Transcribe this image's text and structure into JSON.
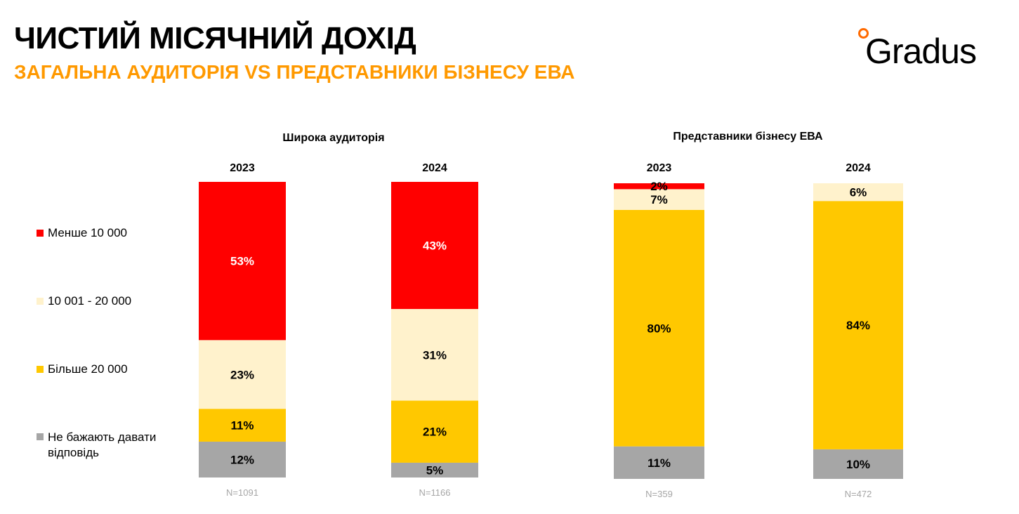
{
  "header": {
    "title": "ЧИСТИЙ МІСЯЧНИЙ ДОХІД",
    "subtitle": "ЗАГАЛЬНА АУДИТОРІЯ VS ПРЕДСТАВНИКИ БІЗНЕСУ ЕВА",
    "logo": "Gradus"
  },
  "chart_data": {
    "type": "bar",
    "stacked": true,
    "groups": [
      "Широка аудиторія",
      "Представники бізнесу ЕВА"
    ],
    "categories": [
      "2023",
      "2024",
      "2023",
      "2024"
    ],
    "group_of_category": [
      0,
      0,
      1,
      1
    ],
    "sample_sizes": [
      "N=1091",
      "N=1166",
      "N=359",
      "N=472"
    ],
    "legend": [
      {
        "name": "Менше 10 000",
        "color": "#FF0000"
      },
      {
        "name": "10 001 - 20 000",
        "color": "#FFF2CC"
      },
      {
        "name": "Більше 20 000",
        "color": "#FFC800"
      },
      {
        "name": "Не бажають давати відповідь",
        "color": "#A6A6A6"
      }
    ],
    "series": [
      {
        "name": "Менше 10 000",
        "values": [
          53,
          43,
          2,
          0
        ]
      },
      {
        "name": "10 001 - 20 000",
        "values": [
          23,
          31,
          7,
          6
        ]
      },
      {
        "name": "Більше 20 000",
        "values": [
          11,
          21,
          80,
          84
        ]
      },
      {
        "name": "Не бажають давати відповідь",
        "values": [
          12,
          5,
          11,
          10
        ]
      }
    ],
    "unit": "%"
  }
}
